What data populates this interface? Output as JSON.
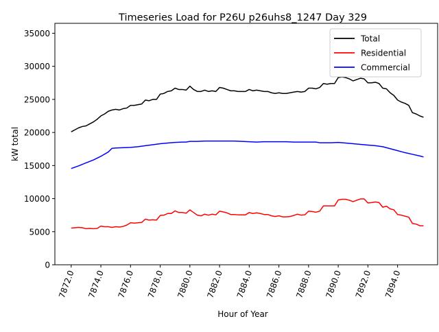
{
  "chart_data": {
    "type": "line",
    "title": "Timeseries Load for P26U p26uhs8_1247  Day 329",
    "xlabel": "Hour of Year",
    "ylabel": "kW total",
    "xlim": [
      7870.9,
      7896.7
    ],
    "ylim": [
      0,
      36500
    ],
    "xticks": [
      7872,
      7874,
      7876,
      7878,
      7880,
      7882,
      7884,
      7886,
      7888,
      7890,
      7892,
      7894
    ],
    "xtick_labels": [
      "7872.0",
      "7874.0",
      "7876.0",
      "7878.0",
      "7880.0",
      "7882.0",
      "7884.0",
      "7886.0",
      "7888.0",
      "7890.0",
      "7892.0",
      "7894.0"
    ],
    "yticks": [
      0,
      5000,
      10000,
      15000,
      20000,
      25000,
      30000,
      35000
    ],
    "ytick_labels": [
      "0",
      "5000",
      "10000",
      "15000",
      "20000",
      "25000",
      "30000",
      "35000"
    ],
    "grid": false,
    "legend_position": "top-right",
    "series": [
      {
        "name": "Total",
        "color": "#000000",
        "x": [
          7872.0,
          7872.25,
          7872.5,
          7872.75,
          7873.0,
          7873.25,
          7873.5,
          7873.75,
          7874.0,
          7874.25,
          7874.5,
          7874.75,
          7875.0,
          7875.25,
          7875.5,
          7875.75,
          7876.0,
          7876.25,
          7876.5,
          7876.75,
          7877.0,
          7877.25,
          7877.5,
          7877.75,
          7878.0,
          7878.25,
          7878.5,
          7878.75,
          7879.0,
          7879.25,
          7879.5,
          7879.75,
          7880.0,
          7880.25,
          7880.5,
          7880.75,
          7881.0,
          7881.25,
          7881.5,
          7881.75,
          7882.0,
          7882.25,
          7882.5,
          7882.75,
          7883.0,
          7883.25,
          7883.5,
          7883.75,
          7884.0,
          7884.25,
          7884.5,
          7884.75,
          7885.0,
          7885.25,
          7885.5,
          7885.75,
          7886.0,
          7886.25,
          7886.5,
          7886.75,
          7887.0,
          7887.25,
          7887.5,
          7887.75,
          7888.0,
          7888.25,
          7888.5,
          7888.75,
          7889.0,
          7889.25,
          7889.5,
          7889.75,
          7890.0,
          7890.25,
          7890.5,
          7890.75,
          7891.0,
          7891.25,
          7891.5,
          7891.75,
          7892.0,
          7892.25,
          7892.5,
          7892.75,
          7893.0,
          7893.25,
          7893.5,
          7893.75,
          7894.0,
          7894.25,
          7894.5,
          7894.75,
          7895.0,
          7895.25,
          7895.5,
          7895.75
        ],
        "values": [
          20100,
          20400,
          20700,
          20900,
          21000,
          21300,
          21600,
          22000,
          22500,
          22800,
          23200,
          23400,
          23500,
          23400,
          23600,
          23700,
          24100,
          24100,
          24200,
          24300,
          24900,
          24800,
          25000,
          25000,
          25800,
          25900,
          26200,
          26300,
          26700,
          26500,
          26500,
          26400,
          27000,
          26500,
          26200,
          26200,
          26400,
          26200,
          26300,
          26200,
          26800,
          26700,
          26500,
          26300,
          26300,
          26200,
          26200,
          26200,
          26500,
          26300,
          26400,
          26300,
          26200,
          26200,
          26000,
          25900,
          26000,
          25900,
          25900,
          26000,
          26100,
          26200,
          26100,
          26200,
          26700,
          26700,
          26600,
          26800,
          27400,
          27300,
          27400,
          27400,
          28300,
          28400,
          28300,
          28100,
          27800,
          28000,
          28200,
          28100,
          27500,
          27500,
          27600,
          27400,
          26700,
          26600,
          26000,
          25600,
          24900,
          24600,
          24400,
          24100,
          23000,
          22800,
          22500,
          22300
        ]
      },
      {
        "name": "Residential",
        "color": "#ff0000",
        "x": [
          7872.0,
          7872.25,
          7872.5,
          7872.75,
          7873.0,
          7873.25,
          7873.5,
          7873.75,
          7874.0,
          7874.25,
          7874.5,
          7874.75,
          7875.0,
          7875.25,
          7875.5,
          7875.75,
          7876.0,
          7876.25,
          7876.5,
          7876.75,
          7877.0,
          7877.25,
          7877.5,
          7877.75,
          7878.0,
          7878.25,
          7878.5,
          7878.75,
          7879.0,
          7879.25,
          7879.5,
          7879.75,
          7880.0,
          7880.25,
          7880.5,
          7880.75,
          7881.0,
          7881.25,
          7881.5,
          7881.75,
          7882.0,
          7882.25,
          7882.5,
          7882.75,
          7883.0,
          7883.25,
          7883.5,
          7883.75,
          7884.0,
          7884.25,
          7884.5,
          7884.75,
          7885.0,
          7885.25,
          7885.5,
          7885.75,
          7886.0,
          7886.25,
          7886.5,
          7886.75,
          7887.0,
          7887.25,
          7887.5,
          7887.75,
          7888.0,
          7888.25,
          7888.5,
          7888.75,
          7889.0,
          7889.25,
          7889.5,
          7889.75,
          7890.0,
          7890.25,
          7890.5,
          7890.75,
          7891.0,
          7891.25,
          7891.5,
          7891.75,
          7892.0,
          7892.25,
          7892.5,
          7892.75,
          7893.0,
          7893.25,
          7893.5,
          7893.75,
          7894.0,
          7894.25,
          7894.5,
          7894.75,
          7895.0,
          7895.25,
          7895.5,
          7895.75
        ],
        "values": [
          5550,
          5600,
          5650,
          5600,
          5450,
          5500,
          5450,
          5500,
          5850,
          5750,
          5750,
          5650,
          5750,
          5700,
          5800,
          6000,
          6350,
          6300,
          6350,
          6400,
          6900,
          6750,
          6800,
          6750,
          7450,
          7500,
          7750,
          7750,
          8150,
          7900,
          7900,
          7800,
          8300,
          7900,
          7500,
          7400,
          7650,
          7500,
          7650,
          7550,
          8100,
          8000,
          7850,
          7600,
          7600,
          7550,
          7550,
          7550,
          7900,
          7750,
          7850,
          7750,
          7600,
          7600,
          7400,
          7300,
          7400,
          7250,
          7250,
          7300,
          7450,
          7650,
          7500,
          7550,
          8100,
          8050,
          7950,
          8100,
          8900,
          8900,
          8900,
          8900,
          9800,
          9900,
          9900,
          9750,
          9550,
          9750,
          9950,
          9950,
          9350,
          9400,
          9500,
          9400,
          8700,
          8850,
          8450,
          8300,
          7600,
          7500,
          7350,
          7200,
          6250,
          6150,
          5900,
          5900
        ]
      },
      {
        "name": "Commercial",
        "color": "#0000ff",
        "x": [
          7872.0,
          7872.5,
          7873.0,
          7873.5,
          7874.0,
          7874.5,
          7874.75,
          7875.0,
          7876.0,
          7876.5,
          7877.0,
          7877.5,
          7878.0,
          7878.5,
          7879.0,
          7879.5,
          7879.75,
          7880.0,
          7880.5,
          7881.0,
          7881.5,
          7882.0,
          7882.5,
          7883.0,
          7883.5,
          7884.0,
          7884.5,
          7885.0,
          7885.5,
          7886.0,
          7886.5,
          7887.0,
          7887.5,
          7888.0,
          7888.5,
          7888.75,
          7889.0,
          7889.5,
          7890.0,
          7890.5,
          7891.0,
          7891.5,
          7892.0,
          7892.5,
          7893.0,
          7893.5,
          7894.0,
          7894.5,
          7895.0,
          7895.5,
          7895.75
        ],
        "values": [
          14550,
          14950,
          15400,
          15850,
          16400,
          17050,
          17600,
          17650,
          17750,
          17850,
          18000,
          18150,
          18300,
          18400,
          18500,
          18550,
          18550,
          18650,
          18650,
          18700,
          18700,
          18700,
          18700,
          18700,
          18650,
          18600,
          18550,
          18600,
          18600,
          18600,
          18600,
          18550,
          18550,
          18550,
          18550,
          18450,
          18450,
          18450,
          18500,
          18400,
          18300,
          18200,
          18100,
          18000,
          17850,
          17550,
          17250,
          16950,
          16700,
          16450,
          16300
        ]
      }
    ]
  }
}
